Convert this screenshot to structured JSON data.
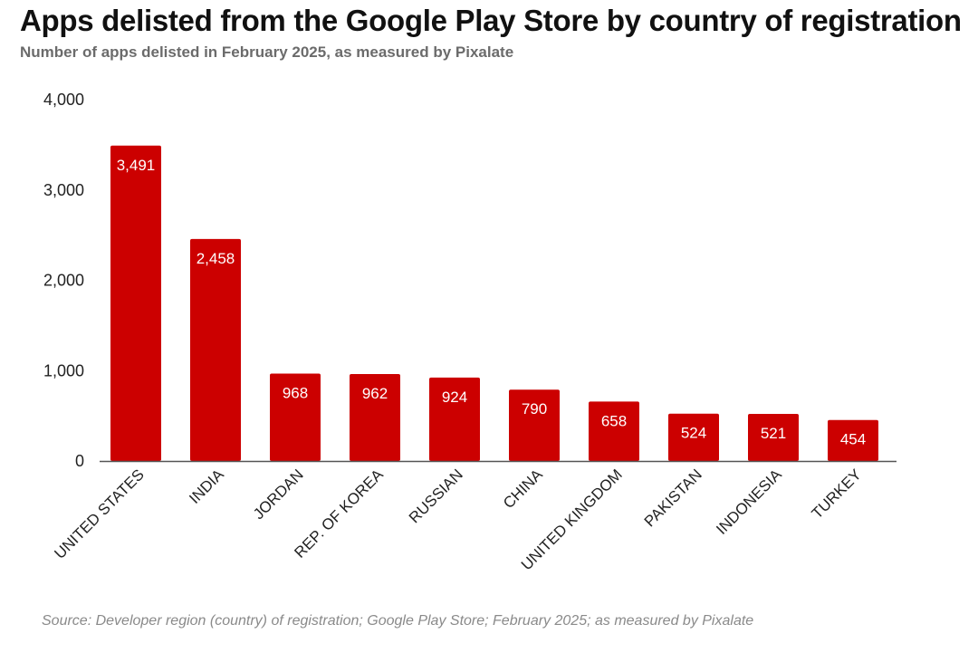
{
  "header": {
    "title": "Apps delisted from the Google Play Store by country of registration",
    "subtitle": "Number of apps delisted in February 2025, as measured by Pixalate"
  },
  "footer": {
    "source": "Source: Developer region (country) of registration; Google Play Store; February 2025; as measured by Pixalate"
  },
  "colors": {
    "bar": "#cc0000",
    "axis": "#555555"
  },
  "chart_data": {
    "type": "bar",
    "title": "Apps delisted from the Google Play Store by country of registration",
    "subtitle": "Number of apps delisted in February 2025, as measured by Pixalate",
    "xlabel": "",
    "ylabel": "",
    "categories": [
      "UNITED STATES",
      "INDIA",
      "JORDAN",
      "REP. OF KOREA",
      "RUSSIAN",
      "CHINA",
      "UNITED KINGDOM",
      "PAKISTAN",
      "INDONESIA",
      "TURKEY"
    ],
    "values": [
      3491,
      2458,
      968,
      962,
      924,
      790,
      658,
      524,
      521,
      454
    ],
    "data_labels": [
      "3,491",
      "2,458",
      "968",
      "962",
      "924",
      "790",
      "658",
      "524",
      "521",
      "454"
    ],
    "ylim": [
      0,
      4000
    ],
    "yticks": [
      0,
      1000,
      2000,
      3000,
      4000
    ],
    "ytick_labels": [
      "0",
      "1,000",
      "2,000",
      "3,000",
      "4,000"
    ],
    "grid": false,
    "legend": "none"
  }
}
